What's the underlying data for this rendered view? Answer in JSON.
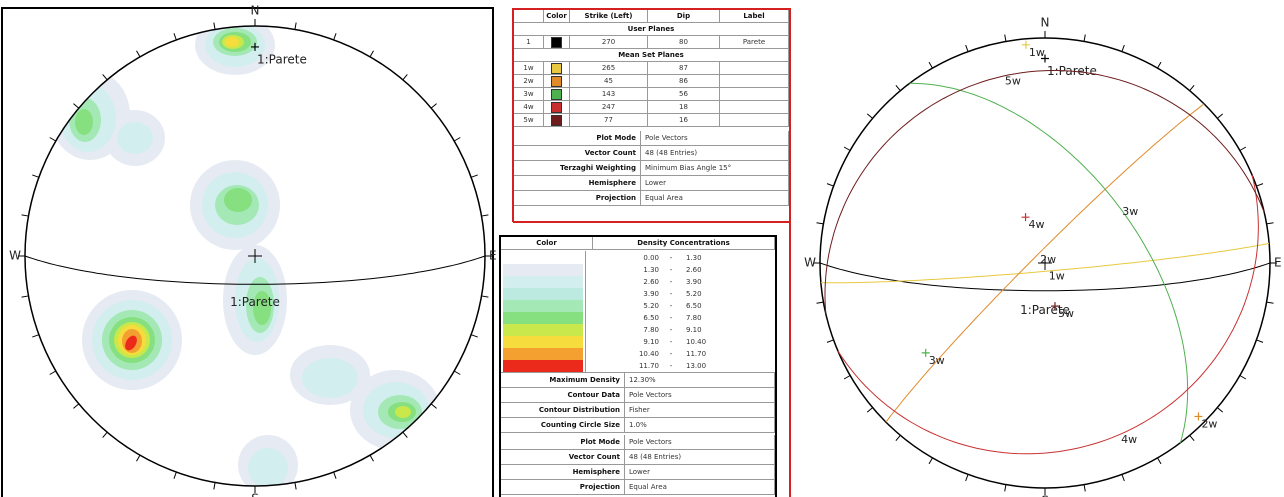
{
  "left_stereonet": {
    "north": "N",
    "east": "E",
    "south": "S",
    "west": "W",
    "pole_label": "1:Parete",
    "plane_label": "1:Parete"
  },
  "right_stereonet": {
    "north": "N",
    "east": "E",
    "south": "S",
    "west": "W",
    "pole_label": "1:Parete",
    "plane_label": "1:Parete"
  },
  "planes_table": {
    "headers": [
      "Color",
      "Strike (Left)",
      "Dip",
      "Label"
    ],
    "user_planes_title": "User Planes",
    "user_planes": [
      {
        "id": "1",
        "color": "#000000",
        "strike": 270,
        "dip": 80,
        "label": "Parete"
      }
    ],
    "mean_sets_title": "Mean Set Planes",
    "mean_sets": [
      {
        "id": "1w",
        "color": "#e8c840",
        "strike": 265,
        "dip": 87
      },
      {
        "id": "2w",
        "color": "#e08a2a",
        "strike": 45,
        "dip": 86
      },
      {
        "id": "3w",
        "color": "#4fb04f",
        "strike": 143,
        "dip": 56
      },
      {
        "id": "4w",
        "color": "#c83030",
        "strike": 247,
        "dip": 18
      },
      {
        "id": "5w",
        "color": "#6e1c1c",
        "strike": 77,
        "dip": 16
      }
    ],
    "properties": [
      {
        "label": "Plot Mode",
        "value": "Pole Vectors"
      },
      {
        "label": "Vector Count",
        "value": "48 (48 Entries)"
      },
      {
        "label": "Terzaghi Weighting",
        "value": "Minimum Bias Angle 15°"
      },
      {
        "label": "Hemisphere",
        "value": "Lower"
      },
      {
        "label": "Projection",
        "value": "Equal Area"
      }
    ]
  },
  "density_table": {
    "headers": [
      "Color",
      "Density Concentrations"
    ],
    "separator": "-",
    "bins": [
      {
        "low": "0.00",
        "high": "1.30",
        "color": "#ffffff"
      },
      {
        "low": "1.30",
        "high": "2.60",
        "color": "#e6eaf2"
      },
      {
        "low": "2.60",
        "high": "3.90",
        "color": "#d2eeee"
      },
      {
        "low": "3.90",
        "high": "5.20",
        "color": "#bdeae0"
      },
      {
        "low": "5.20",
        "high": "6.50",
        "color": "#a4e8b6"
      },
      {
        "low": "6.50",
        "high": "7.80",
        "color": "#86e080"
      },
      {
        "low": "7.80",
        "high": "9.10",
        "color": "#c8e84c"
      },
      {
        "low": "9.10",
        "high": "10.40",
        "color": "#f6dc3c"
      },
      {
        "low": "10.40",
        "high": "11.70",
        "color": "#f4a030"
      },
      {
        "low": "11.70",
        "high": "13.00",
        "color": "#ec2a1c"
      }
    ],
    "properties": [
      {
        "label": "Maximum Density",
        "value": "12.30%"
      },
      {
        "label": "Contour Data",
        "value": "Pole Vectors"
      },
      {
        "label": "Contour Distribution",
        "value": "Fisher"
      },
      {
        "label": "Counting Circle Size",
        "value": "1.0%"
      },
      {
        "label": "Plot Mode",
        "value": "Pole Vectors"
      },
      {
        "label": "Vector Count",
        "value": "48 (48 Entries)"
      },
      {
        "label": "Hemisphere",
        "value": "Lower"
      },
      {
        "label": "Projection",
        "value": "Equal Area"
      }
    ]
  }
}
